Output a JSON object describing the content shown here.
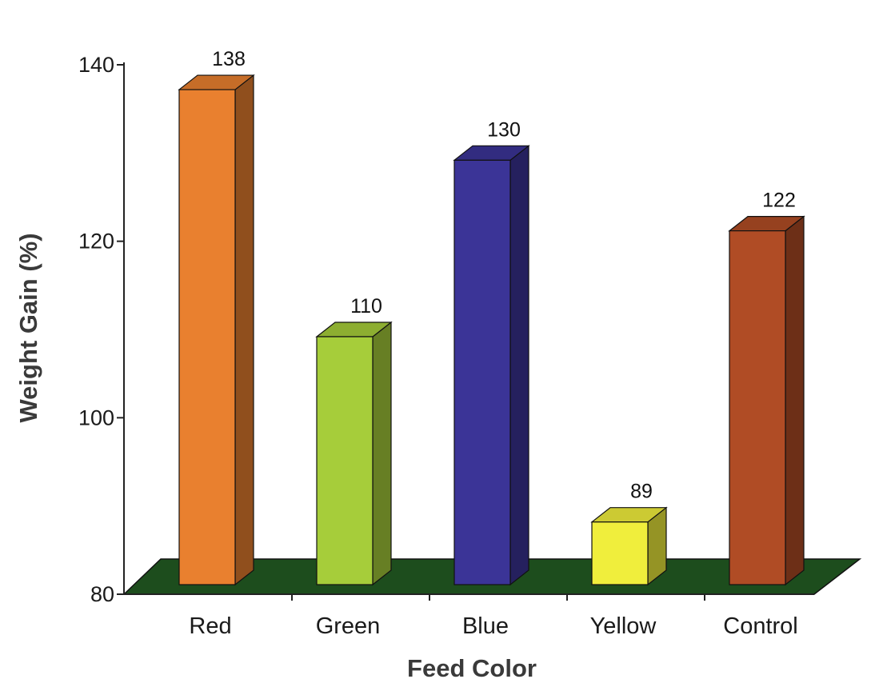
{
  "chart_data": {
    "type": "bar",
    "title": "",
    "xlabel": "Feed Color",
    "ylabel": "Weight Gain (%)",
    "ylim": [
      80,
      140
    ],
    "yticks": [
      80,
      100,
      120,
      140
    ],
    "categories": [
      "Red",
      "Green",
      "Blue",
      "Yellow",
      "Control"
    ],
    "values": [
      138,
      110,
      130,
      89,
      122
    ],
    "data_labels": [
      "138",
      "110",
      "130",
      "89",
      "122"
    ],
    "ytick_labels": [
      "80",
      "100",
      "120",
      "140"
    ],
    "colors": [
      "#e9802f",
      "#a6cd3a",
      "#3b3497",
      "#f0ee3c",
      "#b04c25"
    ],
    "floor_color": "#1d4d1d",
    "grid": false,
    "legend": "none",
    "style": "3d-bar"
  }
}
